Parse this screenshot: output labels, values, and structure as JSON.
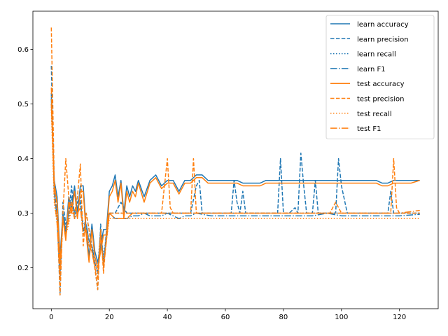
{
  "chart_data": {
    "type": "line",
    "title": "",
    "xlabel": "",
    "ylabel": "",
    "xlim": [
      -6.35,
      133.35
    ],
    "ylim": [
      0.125,
      0.67
    ],
    "xticks": [
      0,
      20,
      40,
      60,
      80,
      100,
      120
    ],
    "yticks": [
      0.2,
      0.3,
      0.4,
      0.5,
      0.6
    ],
    "grid": false,
    "legend_position": "top-right",
    "colors": {
      "learn": "#1f77b4",
      "test": "#ff7f0e"
    },
    "series": [
      {
        "name": "learn accuracy",
        "group": "learn",
        "style": "solid",
        "color": "#1f77b4",
        "x": [
          0,
          1,
          2,
          3,
          4,
          5,
          6,
          7,
          8,
          9,
          10,
          11,
          12,
          13,
          14,
          15,
          16,
          17,
          18,
          19,
          20,
          21,
          22,
          23,
          24,
          25,
          26,
          27,
          28,
          29,
          30,
          32,
          34,
          36,
          38,
          40,
          42,
          44,
          46,
          48,
          50,
          52,
          54,
          56,
          58,
          60,
          62,
          64,
          66,
          68,
          70,
          72,
          74,
          76,
          78,
          80,
          82,
          84,
          86,
          88,
          90,
          92,
          94,
          96,
          98,
          100,
          102,
          104,
          106,
          108,
          110,
          112,
          114,
          116,
          118,
          120,
          122,
          124,
          127
        ],
        "y": [
          0.51,
          0.36,
          0.33,
          0.22,
          0.3,
          0.26,
          0.33,
          0.31,
          0.35,
          0.3,
          0.35,
          0.35,
          0.27,
          0.22,
          0.28,
          0.23,
          0.21,
          0.24,
          0.27,
          0.27,
          0.34,
          0.35,
          0.37,
          0.33,
          0.36,
          0.3,
          0.35,
          0.33,
          0.35,
          0.34,
          0.36,
          0.33,
          0.36,
          0.37,
          0.35,
          0.36,
          0.36,
          0.34,
          0.36,
          0.36,
          0.37,
          0.37,
          0.36,
          0.36,
          0.36,
          0.36,
          0.36,
          0.36,
          0.355,
          0.355,
          0.355,
          0.355,
          0.36,
          0.36,
          0.36,
          0.36,
          0.36,
          0.36,
          0.36,
          0.36,
          0.36,
          0.36,
          0.36,
          0.36,
          0.36,
          0.36,
          0.36,
          0.36,
          0.36,
          0.36,
          0.36,
          0.36,
          0.355,
          0.355,
          0.36,
          0.36,
          0.36,
          0.36,
          0.36
        ]
      },
      {
        "name": "learn precision",
        "group": "learn",
        "style": "dashed",
        "color": "#1f77b4",
        "x": [
          0,
          1,
          2,
          3,
          4,
          5,
          6,
          7,
          8,
          9,
          10,
          11,
          12,
          13,
          14,
          15,
          16,
          17,
          18,
          19,
          20,
          22,
          24,
          26,
          28,
          30,
          32,
          34,
          36,
          38,
          40,
          42,
          44,
          46,
          48,
          50,
          51,
          52,
          54,
          56,
          58,
          60,
          62,
          63,
          64,
          65,
          66,
          67,
          68,
          70,
          72,
          74,
          76,
          78,
          79,
          80,
          82,
          84,
          85,
          86,
          87,
          88,
          90,
          91,
          92,
          94,
          96,
          98,
          99,
          100,
          102,
          104,
          106,
          108,
          110,
          112,
          114,
          116,
          117,
          118,
          120,
          122,
          124,
          127
        ],
        "y": [
          0.57,
          0.34,
          0.3,
          0.15,
          0.32,
          0.28,
          0.3,
          0.35,
          0.29,
          0.32,
          0.33,
          0.26,
          0.3,
          0.27,
          0.24,
          0.2,
          0.16,
          0.28,
          0.2,
          0.27,
          0.3,
          0.3,
          0.32,
          0.3,
          0.3,
          0.3,
          0.3,
          0.3,
          0.3,
          0.3,
          0.3,
          0.3,
          0.3,
          0.3,
          0.3,
          0.35,
          0.36,
          0.3,
          0.3,
          0.3,
          0.3,
          0.3,
          0.3,
          0.36,
          0.32,
          0.3,
          0.34,
          0.3,
          0.3,
          0.3,
          0.3,
          0.3,
          0.3,
          0.3,
          0.4,
          0.3,
          0.3,
          0.31,
          0.3,
          0.41,
          0.35,
          0.3,
          0.3,
          0.36,
          0.3,
          0.3,
          0.3,
          0.3,
          0.4,
          0.35,
          0.3,
          0.3,
          0.3,
          0.3,
          0.3,
          0.3,
          0.3,
          0.3,
          0.34,
          0.3,
          0.3,
          0.3,
          0.3,
          0.3
        ]
      },
      {
        "name": "learn recall",
        "group": "learn",
        "style": "dotted",
        "color": "#1f77b4",
        "x": [
          0,
          1,
          2,
          3,
          4,
          5,
          6,
          7,
          8,
          9,
          10,
          11,
          12,
          13,
          14,
          15,
          16,
          17,
          18,
          19,
          20,
          22,
          24,
          26,
          28,
          30,
          32,
          34,
          36,
          38,
          40,
          42,
          44,
          46,
          48,
          50,
          55,
          60,
          65,
          70,
          75,
          80,
          85,
          90,
          95,
          100,
          105,
          110,
          115,
          120,
          127
        ],
        "y": [
          0.5,
          0.33,
          0.29,
          0.2,
          0.3,
          0.27,
          0.29,
          0.32,
          0.3,
          0.31,
          0.32,
          0.28,
          0.28,
          0.25,
          0.24,
          0.22,
          0.2,
          0.27,
          0.22,
          0.26,
          0.3,
          0.3,
          0.3,
          0.3,
          0.3,
          0.3,
          0.3,
          0.3,
          0.3,
          0.3,
          0.3,
          0.3,
          0.3,
          0.3,
          0.3,
          0.3,
          0.3,
          0.3,
          0.3,
          0.3,
          0.3,
          0.3,
          0.3,
          0.3,
          0.3,
          0.3,
          0.3,
          0.3,
          0.3,
          0.3,
          0.3
        ]
      },
      {
        "name": "learn F1",
        "group": "learn",
        "style": "dashdot",
        "color": "#1f77b4",
        "x": [
          0,
          1,
          2,
          3,
          4,
          5,
          6,
          7,
          8,
          9,
          10,
          11,
          12,
          13,
          14,
          15,
          16,
          17,
          18,
          19,
          20,
          22,
          24,
          26,
          28,
          30,
          32,
          34,
          36,
          38,
          40,
          42,
          44,
          46,
          48,
          50,
          55,
          60,
          65,
          70,
          75,
          80,
          85,
          90,
          95,
          100,
          105,
          110,
          115,
          120,
          127
        ],
        "y": [
          0.52,
          0.34,
          0.29,
          0.19,
          0.3,
          0.27,
          0.3,
          0.33,
          0.3,
          0.31,
          0.32,
          0.27,
          0.28,
          0.25,
          0.24,
          0.21,
          0.19,
          0.27,
          0.21,
          0.26,
          0.3,
          0.29,
          0.29,
          0.29,
          0.295,
          0.295,
          0.3,
          0.295,
          0.295,
          0.295,
          0.3,
          0.295,
          0.29,
          0.295,
          0.295,
          0.3,
          0.295,
          0.295,
          0.295,
          0.295,
          0.295,
          0.295,
          0.295,
          0.295,
          0.3,
          0.295,
          0.295,
          0.295,
          0.295,
          0.295,
          0.298
        ]
      },
      {
        "name": "test accuracy",
        "group": "test",
        "style": "solid",
        "color": "#ff7f0e",
        "x": [
          0,
          1,
          2,
          3,
          4,
          5,
          6,
          7,
          8,
          9,
          10,
          11,
          12,
          13,
          14,
          15,
          16,
          17,
          18,
          19,
          20,
          21,
          22,
          23,
          24,
          25,
          26,
          27,
          28,
          29,
          30,
          32,
          34,
          36,
          38,
          40,
          42,
          44,
          46,
          48,
          50,
          52,
          54,
          56,
          58,
          60,
          62,
          64,
          66,
          68,
          70,
          72,
          74,
          76,
          78,
          80,
          82,
          84,
          86,
          88,
          90,
          92,
          94,
          96,
          98,
          100,
          102,
          104,
          106,
          108,
          110,
          112,
          114,
          116,
          118,
          120,
          122,
          124,
          127
        ],
        "y": [
          0.5,
          0.35,
          0.32,
          0.21,
          0.29,
          0.25,
          0.32,
          0.3,
          0.34,
          0.29,
          0.34,
          0.34,
          0.26,
          0.21,
          0.27,
          0.22,
          0.2,
          0.23,
          0.26,
          0.26,
          0.33,
          0.34,
          0.36,
          0.32,
          0.355,
          0.29,
          0.34,
          0.32,
          0.34,
          0.33,
          0.355,
          0.32,
          0.355,
          0.365,
          0.345,
          0.355,
          0.355,
          0.335,
          0.355,
          0.355,
          0.365,
          0.365,
          0.355,
          0.355,
          0.355,
          0.355,
          0.355,
          0.355,
          0.35,
          0.35,
          0.35,
          0.35,
          0.355,
          0.355,
          0.355,
          0.355,
          0.355,
          0.355,
          0.355,
          0.355,
          0.355,
          0.355,
          0.355,
          0.355,
          0.355,
          0.355,
          0.355,
          0.355,
          0.355,
          0.355,
          0.355,
          0.355,
          0.35,
          0.35,
          0.355,
          0.355,
          0.355,
          0.355,
          0.36
        ]
      },
      {
        "name": "test precision",
        "group": "test",
        "style": "dashed",
        "color": "#ff7f0e",
        "x": [
          0,
          1,
          2,
          3,
          4,
          5,
          6,
          7,
          8,
          9,
          10,
          11,
          12,
          13,
          14,
          15,
          16,
          17,
          18,
          19,
          20,
          22,
          24,
          26,
          28,
          30,
          32,
          34,
          36,
          38,
          40,
          41,
          42,
          44,
          46,
          48,
          49,
          50,
          52,
          54,
          56,
          58,
          60,
          62,
          64,
          66,
          68,
          70,
          72,
          74,
          76,
          78,
          80,
          82,
          84,
          86,
          88,
          90,
          92,
          94,
          96,
          98,
          100,
          102,
          104,
          106,
          108,
          110,
          112,
          114,
          116,
          117,
          118,
          119,
          120,
          122,
          124,
          127
        ],
        "y": [
          0.64,
          0.36,
          0.31,
          0.15,
          0.3,
          0.4,
          0.33,
          0.3,
          0.3,
          0.33,
          0.39,
          0.24,
          0.3,
          0.27,
          0.23,
          0.2,
          0.16,
          0.27,
          0.19,
          0.26,
          0.3,
          0.3,
          0.3,
          0.3,
          0.3,
          0.3,
          0.3,
          0.3,
          0.3,
          0.3,
          0.4,
          0.31,
          0.3,
          0.3,
          0.3,
          0.3,
          0.4,
          0.3,
          0.3,
          0.3,
          0.3,
          0.3,
          0.3,
          0.3,
          0.3,
          0.3,
          0.3,
          0.3,
          0.3,
          0.3,
          0.3,
          0.3,
          0.3,
          0.3,
          0.3,
          0.3,
          0.3,
          0.3,
          0.3,
          0.3,
          0.3,
          0.32,
          0.3,
          0.3,
          0.3,
          0.3,
          0.3,
          0.3,
          0.3,
          0.3,
          0.3,
          0.3,
          0.4,
          0.31,
          0.3,
          0.3,
          0.3,
          0.3
        ]
      },
      {
        "name": "test recall",
        "group": "test",
        "style": "dotted",
        "color": "#ff7f0e",
        "x": [
          0,
          1,
          2,
          3,
          4,
          5,
          6,
          7,
          8,
          9,
          10,
          11,
          12,
          13,
          14,
          15,
          16,
          17,
          18,
          19,
          20,
          22,
          24,
          26,
          28,
          30,
          32,
          34,
          36,
          38,
          40,
          42,
          44,
          46,
          48,
          50,
          55,
          60,
          65,
          70,
          75,
          80,
          85,
          90,
          95,
          100,
          105,
          110,
          115,
          120,
          127
        ],
        "y": [
          0.49,
          0.32,
          0.28,
          0.19,
          0.29,
          0.26,
          0.28,
          0.31,
          0.29,
          0.3,
          0.31,
          0.27,
          0.27,
          0.24,
          0.23,
          0.21,
          0.19,
          0.26,
          0.21,
          0.25,
          0.29,
          0.29,
          0.29,
          0.29,
          0.29,
          0.29,
          0.29,
          0.29,
          0.29,
          0.29,
          0.29,
          0.29,
          0.29,
          0.29,
          0.29,
          0.29,
          0.29,
          0.29,
          0.29,
          0.29,
          0.29,
          0.29,
          0.29,
          0.29,
          0.29,
          0.29,
          0.29,
          0.29,
          0.29,
          0.29,
          0.29
        ]
      },
      {
        "name": "test F1",
        "group": "test",
        "style": "dashdot",
        "color": "#ff7f0e",
        "x": [
          0,
          1,
          2,
          3,
          4,
          5,
          6,
          7,
          8,
          9,
          10,
          11,
          12,
          13,
          14,
          15,
          16,
          17,
          18,
          19,
          20,
          22,
          24,
          26,
          28,
          30,
          32,
          34,
          36,
          38,
          40,
          42,
          44,
          46,
          48,
          50,
          55,
          60,
          65,
          70,
          75,
          80,
          85,
          90,
          95,
          100,
          105,
          110,
          115,
          120,
          127
        ],
        "y": [
          0.53,
          0.33,
          0.28,
          0.18,
          0.29,
          0.26,
          0.29,
          0.32,
          0.29,
          0.3,
          0.31,
          0.26,
          0.27,
          0.24,
          0.23,
          0.2,
          0.18,
          0.26,
          0.2,
          0.25,
          0.3,
          0.29,
          0.29,
          0.29,
          0.3,
          0.3,
          0.3,
          0.3,
          0.3,
          0.3,
          0.3,
          0.3,
          0.3,
          0.3,
          0.3,
          0.3,
          0.3,
          0.3,
          0.3,
          0.3,
          0.3,
          0.3,
          0.3,
          0.3,
          0.3,
          0.3,
          0.3,
          0.3,
          0.3,
          0.3,
          0.305
        ]
      }
    ]
  }
}
